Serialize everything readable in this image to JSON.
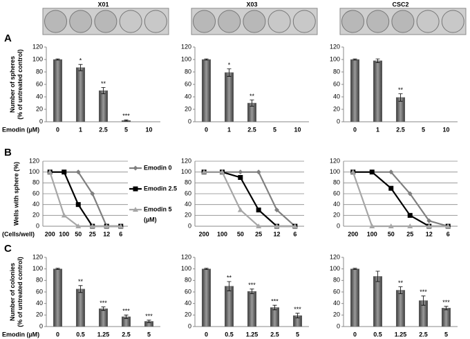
{
  "chart_data": [
    {
      "type": "bar",
      "panel": "A",
      "title": "X01",
      "ylabel": [
        "Number of spheres",
        "(% of untreated control)"
      ],
      "xlabel": "Emodin (µM)",
      "categories": [
        "0",
        "1",
        "2.5",
        "5",
        "10"
      ],
      "values": [
        100,
        87,
        50,
        2,
        0
      ],
      "errors": [
        1,
        5,
        5,
        1,
        null
      ],
      "annotations": [
        null,
        "*",
        "**",
        "***",
        null
      ],
      "color": "#6b6b6b",
      "ylim": [
        0,
        120
      ],
      "yticks": [
        0,
        20,
        40,
        60,
        80,
        100,
        120
      ],
      "grid": false
    },
    {
      "type": "bar",
      "title": "X03",
      "categories": [
        "0",
        "1",
        "2.5",
        "5",
        "10"
      ],
      "values": [
        100,
        79,
        30,
        0,
        0
      ],
      "errors": [
        1,
        6,
        5,
        null,
        null
      ],
      "annotations": [
        null,
        "*",
        "**",
        null,
        null
      ],
      "color": "#6b6b6b",
      "ylim": [
        0,
        120
      ],
      "yticks": [
        0,
        20,
        40,
        60,
        80,
        100,
        120
      ],
      "grid": false
    },
    {
      "type": "bar",
      "title": "CSC2",
      "categories": [
        "0",
        "1",
        "2.5",
        "5",
        "10"
      ],
      "values": [
        100,
        98,
        39,
        0,
        0
      ],
      "errors": [
        1,
        3,
        6,
        null,
        null
      ],
      "annotations": [
        null,
        null,
        "**",
        null,
        null
      ],
      "color": "#6b6b6b",
      "ylim": [
        0,
        120
      ],
      "yticks": [
        0,
        20,
        40,
        60,
        80,
        100,
        120
      ],
      "grid": false
    },
    {
      "type": "line",
      "panel": "B",
      "ylabel": [
        "Wells with sphere (%)"
      ],
      "xlabel": "(Cells/well)",
      "legend_note": "(µM)",
      "categories": [
        "200",
        "100",
        "50",
        "25",
        "12",
        "6"
      ],
      "series": [
        {
          "name": "Emodin 0",
          "color": "#7f7f7f",
          "marker": "diamond",
          "values": [
            100,
            100,
            100,
            60,
            0,
            0
          ]
        },
        {
          "name": "Emodin 2.5",
          "color": "#000000",
          "marker": "square",
          "values": [
            100,
            100,
            40,
            0,
            0,
            0
          ]
        },
        {
          "name": "Emodin 5",
          "color": "#a6a6a6",
          "marker": "triangle",
          "values": [
            100,
            20,
            0,
            0,
            0,
            0
          ]
        }
      ],
      "ylim": [
        0,
        120
      ],
      "yticks": [
        0,
        20,
        40,
        60,
        80,
        100,
        120
      ],
      "grid": true
    },
    {
      "type": "line",
      "categories": [
        "200",
        "100",
        "50",
        "25",
        "12",
        "6"
      ],
      "series": [
        {
          "color": "#7f7f7f",
          "marker": "diamond",
          "values": [
            100,
            100,
            100,
            100,
            30,
            0
          ]
        },
        {
          "color": "#000000",
          "marker": "square",
          "values": [
            100,
            100,
            90,
            30,
            0,
            0
          ]
        },
        {
          "color": "#a6a6a6",
          "marker": "triangle",
          "values": [
            100,
            100,
            30,
            0,
            0,
            0
          ]
        }
      ],
      "ylim": [
        0,
        120
      ],
      "yticks": [
        0,
        20,
        40,
        60,
        80,
        100,
        120
      ],
      "grid": true
    },
    {
      "type": "line",
      "categories": [
        "200",
        "100",
        "50",
        "25",
        "12",
        "6"
      ],
      "series": [
        {
          "color": "#7f7f7f",
          "marker": "diamond",
          "values": [
            100,
            100,
            100,
            60,
            10,
            0
          ]
        },
        {
          "color": "#000000",
          "marker": "square",
          "values": [
            100,
            100,
            70,
            20,
            0,
            0
          ]
        },
        {
          "color": "#a6a6a6",
          "marker": "triangle",
          "values": [
            100,
            0,
            0,
            0,
            0,
            0
          ]
        }
      ],
      "ylim": [
        0,
        120
      ],
      "yticks": [
        0,
        20,
        40,
        60,
        80,
        100,
        120
      ],
      "grid": true
    },
    {
      "type": "bar",
      "panel": "C",
      "ylabel": [
        "Number of colonies",
        "(% of untreated control)"
      ],
      "xlabel": "Emodin (µM)",
      "categories": [
        "0",
        "0.5",
        "1.25",
        "2.5",
        "5"
      ],
      "values": [
        100,
        65,
        31,
        17,
        9
      ],
      "errors": [
        1,
        6,
        3,
        3,
        2
      ],
      "annotations": [
        null,
        "**",
        "***",
        "***",
        "***"
      ],
      "color": "#6b6b6b",
      "ylim": [
        0,
        120
      ],
      "yticks": [
        0,
        20,
        40,
        60,
        80,
        100,
        120
      ],
      "grid": false
    },
    {
      "type": "bar",
      "categories": [
        "0",
        "0.5",
        "1.25",
        "2.5",
        "5"
      ],
      "values": [
        100,
        70,
        61,
        33,
        19
      ],
      "errors": [
        1,
        8,
        4,
        4,
        4
      ],
      "annotations": [
        null,
        "**",
        "***",
        "***",
        "***"
      ],
      "color": "#6b6b6b",
      "ylim": [
        0,
        120
      ],
      "yticks": [
        0,
        20,
        40,
        60,
        80,
        100,
        120
      ],
      "grid": false
    },
    {
      "type": "bar",
      "categories": [
        "0",
        "0.5",
        "1.25",
        "2.5",
        "5"
      ],
      "values": [
        100,
        87,
        63,
        45,
        32
      ],
      "errors": [
        1,
        9,
        6,
        8,
        3
      ],
      "annotations": [
        null,
        null,
        "**",
        "***",
        "***"
      ],
      "color": "#6b6b6b",
      "ylim": [
        0,
        120
      ],
      "yticks": [
        0,
        20,
        40,
        60,
        80,
        100,
        120
      ],
      "grid": false
    }
  ]
}
